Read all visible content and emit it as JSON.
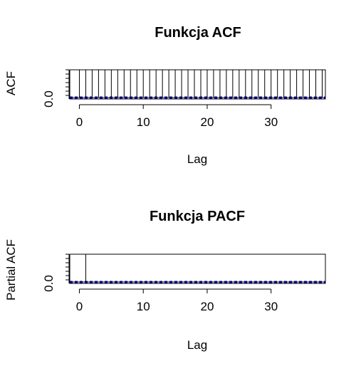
{
  "chart_data": [
    {
      "type": "bar",
      "title": "Funkcja ACF",
      "xlabel": "Lag",
      "ylabel": "ACF",
      "x_ticks": [
        "0",
        "10",
        "20",
        "30"
      ],
      "y_ticks": [
        "0.0"
      ],
      "xlim": [
        -1.5,
        38.5
      ],
      "ylim": [
        -0.05,
        1.0
      ],
      "lags": [
        0,
        1,
        2,
        3,
        4,
        5,
        6,
        7,
        8,
        9,
        10,
        11,
        12,
        13,
        14,
        15,
        16,
        17,
        18,
        19,
        20,
        21,
        22,
        23,
        24,
        25,
        26,
        27,
        28,
        29,
        30,
        31,
        32,
        33,
        34,
        35,
        36,
        37,
        38
      ],
      "values": [
        1.0,
        1.0,
        1.0,
        1.0,
        1.0,
        1.0,
        1.0,
        1.0,
        1.0,
        1.0,
        1.0,
        1.0,
        1.0,
        1.0,
        1.0,
        1.0,
        1.0,
        1.0,
        1.0,
        1.0,
        1.0,
        1.0,
        1.0,
        1.0,
        1.0,
        1.0,
        1.0,
        1.0,
        1.0,
        1.0,
        1.0,
        1.0,
        1.0,
        1.0,
        1.0,
        1.0,
        1.0,
        1.0,
        1.0
      ],
      "conf_band": [
        -0.02,
        0.02
      ],
      "band_color": "#0000cc"
    },
    {
      "type": "bar",
      "title": "Funkcja PACF",
      "xlabel": "Lag",
      "ylabel": "Partial ACF",
      "x_ticks": [
        "0",
        "10",
        "20",
        "30"
      ],
      "y_ticks": [
        "0.0"
      ],
      "xlim": [
        -1.5,
        38.5
      ],
      "ylim": [
        -0.05,
        1.0
      ],
      "lags": [
        1,
        2,
        3,
        4,
        5,
        6,
        7,
        8,
        9,
        10,
        11,
        12,
        13,
        14,
        15,
        16,
        17,
        18,
        19,
        20,
        21,
        22,
        23,
        24,
        25,
        26,
        27,
        28,
        29,
        30,
        31,
        32,
        33,
        34,
        35,
        36,
        37,
        38
      ],
      "values": [
        1.0,
        0.0,
        0.0,
        0.0,
        0.0,
        0.0,
        0.0,
        0.0,
        0.0,
        0.0,
        0.0,
        0.0,
        0.0,
        0.0,
        0.0,
        0.0,
        0.0,
        0.0,
        0.0,
        0.0,
        0.0,
        0.0,
        0.0,
        0.0,
        0.0,
        0.0,
        0.0,
        0.0,
        0.0,
        0.0,
        0.0,
        0.0,
        0.0,
        0.0,
        0.0,
        0.0,
        0.0,
        0.0
      ],
      "conf_band": [
        -0.02,
        0.02
      ],
      "band_color": "#0000cc"
    }
  ]
}
